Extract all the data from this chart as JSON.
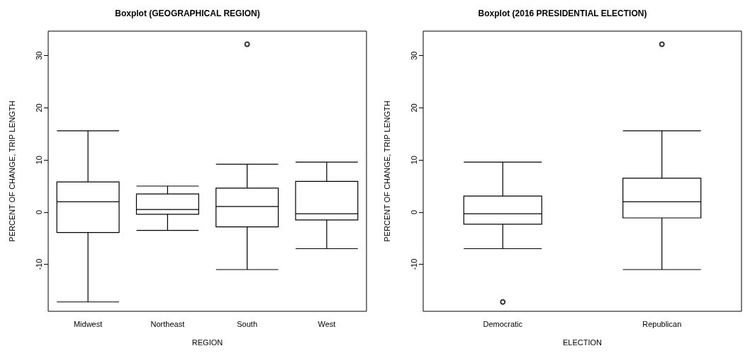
{
  "chart_data": [
    {
      "type": "box",
      "title": "Boxplot (GEOGRAPHICAL REGION)",
      "xlabel": "REGION",
      "ylabel": "PERCENT OF CHANGE, TRIP LENGTH",
      "categories": [
        "Midwest",
        "Northeast",
        "South",
        "West"
      ],
      "boxes": [
        {
          "low": -17.2,
          "q1": -3.9,
          "median": 2.0,
          "q3": 5.8,
          "high": 15.6
        },
        {
          "low": -3.5,
          "q1": -0.4,
          "median": 0.5,
          "q3": 3.5,
          "high": 5.0
        },
        {
          "low": -11.0,
          "q1": -2.8,
          "median": 1.1,
          "q3": 4.6,
          "high": 9.2,
          "outliers": [
            32.2
          ]
        },
        {
          "low": -7.0,
          "q1": -1.5,
          "median": -0.3,
          "q3": 5.9,
          "high": 9.6
        }
      ],
      "ylim": [
        -19,
        34.7
      ],
      "yticks": [
        -10,
        0,
        10,
        20,
        30
      ],
      "grid": false
    },
    {
      "type": "box",
      "title": "Boxplot (2016 PRESIDENTIAL ELECTION)",
      "xlabel": "ELECTION",
      "ylabel": "PERCENT OF CHANGE, TRIP LENGTH",
      "categories": [
        "Democratic",
        "Republican"
      ],
      "boxes": [
        {
          "low": -7.0,
          "q1": -2.3,
          "median": -0.3,
          "q3": 3.1,
          "high": 9.6,
          "outliers": [
            -17.2
          ]
        },
        {
          "low": -11.0,
          "q1": -1.1,
          "median": 2.0,
          "q3": 6.5,
          "high": 15.6,
          "outliers": [
            32.2
          ]
        }
      ],
      "ylim": [
        -19,
        34.7
      ],
      "yticks": [
        -10,
        0,
        10,
        20,
        30
      ],
      "grid": false
    }
  ]
}
